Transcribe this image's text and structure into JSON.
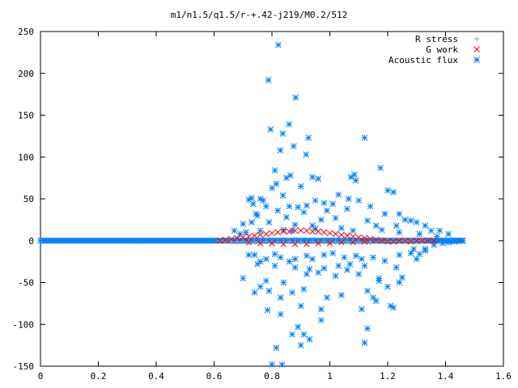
{
  "chart_data": {
    "type": "scatter",
    "title": "m1/n1.5/q1.5/r-+.42-j219/M0.2/512",
    "xlabel": "",
    "ylabel": "",
    "xlim": [
      0,
      1.6
    ],
    "ylim": [
      -150,
      250
    ],
    "x_ticks": [
      0,
      0.2,
      0.4,
      0.6,
      0.8,
      1,
      1.2,
      1.4,
      1.6
    ],
    "x_tick_labels": [
      "0",
      "0.2",
      "0.4",
      "0.6",
      "0.8",
      "1",
      "1.2",
      "1.4",
      "1.6"
    ],
    "y_ticks": [
      -150,
      -100,
      -50,
      0,
      50,
      100,
      150,
      200,
      250
    ],
    "y_tick_labels": [
      "-150",
      "-100",
      "-50",
      "0",
      "50",
      "100",
      "150",
      "200",
      "250"
    ],
    "grid": false,
    "legend_position": "top-right",
    "series": [
      {
        "name": "R stress",
        "color": "#a0a0a0",
        "marker": "plus",
        "points": [
          [
            0.62,
            0
          ],
          [
            0.64,
            -0.5
          ],
          [
            0.66,
            -1
          ],
          [
            0.68,
            -1.5
          ],
          [
            0.7,
            -1
          ],
          [
            0.72,
            -2
          ],
          [
            0.74,
            -1.5
          ],
          [
            0.76,
            -2
          ],
          [
            0.78,
            -1
          ],
          [
            0.8,
            -2
          ],
          [
            0.82,
            -1.5
          ],
          [
            0.84,
            -2
          ],
          [
            0.86,
            -1
          ],
          [
            0.88,
            -2
          ],
          [
            0.9,
            -1.5
          ],
          [
            0.92,
            -2
          ],
          [
            0.94,
            -1
          ],
          [
            0.96,
            -1.5
          ],
          [
            0.98,
            -1
          ],
          [
            1.0,
            -2
          ],
          [
            1.02,
            -1.5
          ],
          [
            1.04,
            -1
          ],
          [
            1.06,
            -1.5
          ],
          [
            1.08,
            -1
          ],
          [
            1.1,
            -1.5
          ],
          [
            1.12,
            -1
          ],
          [
            1.14,
            -1
          ],
          [
            1.16,
            -0.5
          ],
          [
            1.18,
            -1
          ],
          [
            1.2,
            -0.5
          ],
          [
            1.22,
            -1
          ],
          [
            1.24,
            -0.5
          ],
          [
            1.26,
            0
          ],
          [
            1.28,
            -0.5
          ],
          [
            1.3,
            0
          ],
          [
            1.32,
            0
          ]
        ]
      },
      {
        "name": "G work",
        "color": "#ff0000",
        "marker": "cross",
        "points": [
          [
            0.62,
            0
          ],
          [
            0.64,
            1
          ],
          [
            0.66,
            2
          ],
          [
            0.68,
            3
          ],
          [
            0.7,
            4
          ],
          [
            0.72,
            5
          ],
          [
            0.74,
            6
          ],
          [
            0.76,
            7
          ],
          [
            0.78,
            8
          ],
          [
            0.8,
            9
          ],
          [
            0.82,
            10
          ],
          [
            0.84,
            11
          ],
          [
            0.86,
            11
          ],
          [
            0.88,
            12
          ],
          [
            0.9,
            12
          ],
          [
            0.92,
            12
          ],
          [
            0.94,
            11
          ],
          [
            0.96,
            11
          ],
          [
            0.98,
            10
          ],
          [
            1.0,
            9
          ],
          [
            1.02,
            8
          ],
          [
            1.04,
            7
          ],
          [
            1.06,
            6
          ],
          [
            1.08,
            5
          ],
          [
            1.1,
            4
          ],
          [
            1.12,
            3
          ],
          [
            1.14,
            2
          ],
          [
            1.16,
            1
          ],
          [
            1.18,
            0
          ],
          [
            1.2,
            -1
          ],
          [
            1.22,
            -1
          ],
          [
            1.24,
            0
          ],
          [
            1.26,
            0
          ],
          [
            1.28,
            -1
          ],
          [
            1.3,
            0
          ],
          [
            1.32,
            0
          ],
          [
            1.34,
            0
          ],
          [
            1.36,
            0
          ],
          [
            0.72,
            -2
          ],
          [
            0.76,
            -3
          ],
          [
            0.8,
            -3
          ],
          [
            0.84,
            -4
          ],
          [
            0.88,
            -4
          ],
          [
            0.92,
            -4
          ],
          [
            0.96,
            -3
          ],
          [
            1.0,
            -3
          ],
          [
            1.04,
            -2
          ],
          [
            1.08,
            -2
          ],
          [
            1.12,
            -1
          ]
        ]
      },
      {
        "name": "Acoustic flux",
        "color": "#0080ff",
        "marker": "star",
        "points": [
          [
            0.822,
            234
          ],
          [
            0.788,
            192
          ],
          [
            0.882,
            171
          ],
          [
            0.859,
            139
          ],
          [
            0.795,
            133
          ],
          [
            0.837,
            128
          ],
          [
            0.926,
            123
          ],
          [
            1.12,
            123
          ],
          [
            0.875,
            113
          ],
          [
            0.829,
            108
          ],
          [
            0.918,
            103
          ],
          [
            1.175,
            87
          ],
          [
            1.085,
            79
          ],
          [
            1.09,
            72
          ],
          [
            1.073,
            76
          ],
          [
            0.81,
            84
          ],
          [
            0.864,
            78
          ],
          [
            0.85,
            75
          ],
          [
            0.94,
            76
          ],
          [
            0.96,
            74
          ],
          [
            0.8,
            63
          ],
          [
            0.815,
            68
          ],
          [
            0.9,
            65
          ],
          [
            0.838,
            54
          ],
          [
            0.95,
            48
          ],
          [
            1.03,
            55
          ],
          [
            1.065,
            50
          ],
          [
            1.1,
            48
          ],
          [
            0.73,
            51
          ],
          [
            0.72,
            49
          ],
          [
            0.76,
            50
          ],
          [
            0.77,
            48
          ],
          [
            1.2,
            60
          ],
          [
            1.22,
            58
          ],
          [
            0.735,
            44
          ],
          [
            0.78,
            41
          ],
          [
            0.86,
            41
          ],
          [
            0.89,
            40
          ],
          [
            0.92,
            42
          ],
          [
            0.98,
            45
          ],
          [
            1.01,
            44
          ],
          [
            0.745,
            32
          ],
          [
            0.75,
            30
          ],
          [
            0.82,
            36
          ],
          [
            0.85,
            28
          ],
          [
            0.91,
            34
          ],
          [
            0.99,
            36
          ],
          [
            1.06,
            38
          ],
          [
            1.14,
            41
          ],
          [
            1.24,
            32
          ],
          [
            1.19,
            32
          ],
          [
            0.7,
            20
          ],
          [
            0.73,
            22
          ],
          [
            0.79,
            22
          ],
          [
            0.88,
            19
          ],
          [
            0.94,
            18
          ],
          [
            0.97,
            25
          ],
          [
            1.02,
            27
          ],
          [
            1.13,
            24
          ],
          [
            1.16,
            18
          ],
          [
            1.23,
            18
          ],
          [
            1.26,
            25
          ],
          [
            1.28,
            24
          ],
          [
            1.3,
            22
          ],
          [
            1.33,
            18
          ],
          [
            1.35,
            12
          ],
          [
            1.38,
            12
          ],
          [
            1.41,
            8
          ],
          [
            0.67,
            12
          ],
          [
            0.69,
            8
          ],
          [
            0.71,
            10
          ],
          [
            0.76,
            12
          ],
          [
            0.84,
            13
          ],
          [
            0.87,
            12
          ],
          [
            0.95,
            14
          ],
          [
            1.04,
            15
          ],
          [
            1.08,
            12
          ],
          [
            1.18,
            13
          ],
          [
            1.24,
            10
          ],
          [
            1.31,
            8
          ],
          [
            1.37,
            5
          ],
          [
            0.72,
            -17
          ],
          [
            0.74,
            -17
          ],
          [
            0.76,
            -25
          ],
          [
            0.78,
            -22
          ],
          [
            0.81,
            -16
          ],
          [
            0.83,
            -20
          ],
          [
            0.86,
            -25
          ],
          [
            0.88,
            -22
          ],
          [
            0.92,
            -18
          ],
          [
            0.94,
            -22
          ],
          [
            0.98,
            -17
          ],
          [
            1.01,
            -15
          ],
          [
            1.05,
            -20
          ],
          [
            1.09,
            -18
          ],
          [
            1.11,
            -22
          ],
          [
            1.15,
            -20
          ],
          [
            1.19,
            -24
          ],
          [
            1.24,
            -17
          ],
          [
            1.28,
            -15
          ],
          [
            1.31,
            -16
          ],
          [
            1.33,
            -12
          ],
          [
            0.75,
            -28
          ],
          [
            0.81,
            -30
          ],
          [
            0.88,
            -32
          ],
          [
            0.93,
            -34
          ],
          [
            0.98,
            -33
          ],
          [
            1.03,
            -30
          ],
          [
            1.07,
            -28
          ],
          [
            1.12,
            -30
          ],
          [
            1.23,
            -32
          ],
          [
            1.3,
            -22
          ],
          [
            0.7,
            -45
          ],
          [
            0.78,
            -48
          ],
          [
            0.84,
            -50
          ],
          [
            0.92,
            -40
          ],
          [
            0.96,
            -38
          ],
          [
            1.02,
            -42
          ],
          [
            1.06,
            -35
          ],
          [
            1.1,
            -40
          ],
          [
            1.17,
            -45
          ],
          [
            1.2,
            -55
          ],
          [
            1.24,
            -50
          ],
          [
            0.74,
            -62
          ],
          [
            0.76,
            -55
          ],
          [
            0.79,
            -60
          ],
          [
            0.83,
            -68
          ],
          [
            0.87,
            -62
          ],
          [
            0.91,
            -58
          ],
          [
            0.99,
            -68
          ],
          [
            1.04,
            -65
          ],
          [
            1.13,
            -60
          ],
          [
            1.16,
            -72
          ],
          [
            1.21,
            -78
          ],
          [
            0.785,
            -83
          ],
          [
            0.83,
            -88
          ],
          [
            0.9,
            -78
          ],
          [
            0.97,
            -82
          ],
          [
            1.11,
            -82
          ],
          [
            1.15,
            -68
          ],
          [
            1.17,
            -48
          ],
          [
            1.25,
            -44
          ],
          [
            0.89,
            -103
          ],
          [
            0.91,
            -112
          ],
          [
            0.93,
            -118
          ],
          [
            0.87,
            -112
          ],
          [
            1.13,
            -105
          ],
          [
            0.9,
            -125
          ],
          [
            0.8,
            -148
          ],
          [
            0.835,
            -148
          ],
          [
            1.12,
            -122
          ],
          [
            0.815,
            -128
          ],
          [
            0.97,
            -95
          ],
          [
            1.22,
            -80
          ],
          [
            1.29,
            -10
          ],
          [
            1.33,
            -10
          ],
          [
            1.36,
            -5
          ],
          [
            1.39,
            -3
          ],
          [
            1.41,
            -2
          ],
          [
            1.43,
            -1
          ],
          [
            1.45,
            0
          ],
          [
            1.46,
            0
          ]
        ]
      }
    ]
  }
}
